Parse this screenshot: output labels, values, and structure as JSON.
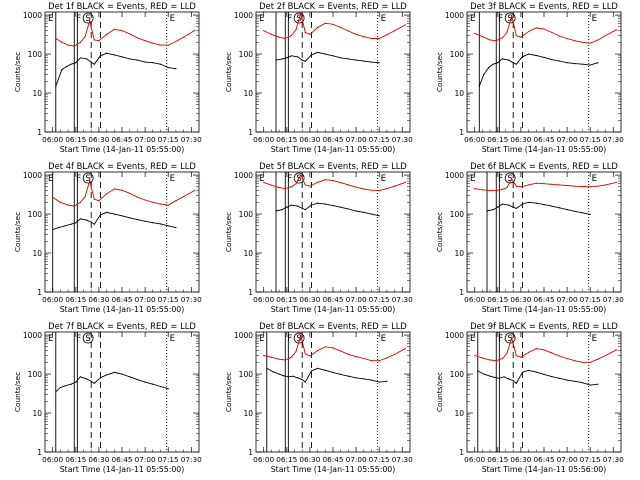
{
  "figure": {
    "time_axis": {
      "ticks": [
        "06:00",
        "06:15",
        "06:30",
        "06:45",
        "07:00",
        "07:15",
        "07:30"
      ],
      "xlim": [
        "05:55",
        "07:35"
      ]
    },
    "y_axis": {
      "ticks": [
        "1",
        "10",
        "100",
        "1000"
      ],
      "scale": "log",
      "ylim": [
        1,
        1200
      ]
    },
    "colors": {
      "events": "#000000",
      "lld": "#e00000",
      "axes": "#000000"
    },
    "markers": {
      "solid": [
        "06:14",
        "06:16"
      ],
      "dashed": [
        "06:25",
        "06:31"
      ],
      "dotted": [
        "07:14"
      ],
      "S_time": "06:23",
      "F_time": "06:14",
      "E_time": "07:14"
    }
  },
  "chart_data": [
    {
      "type": "line",
      "title": "Det 1f BLACK = Events, RED = LLD",
      "xlabel": "Start Time (14-Jan-11 05:55:00)",
      "ylabel": "Counts/sec",
      "marker_labels": [
        "E",
        "F",
        "S",
        "E"
      ],
      "start": "06:02",
      "series": [
        {
          "key": "events",
          "x": [
            "06:02",
            "06:06",
            "06:09",
            "06:12",
            "06:15",
            "06:18",
            "06:22",
            "06:25",
            "06:27",
            "06:31",
            "06:35",
            "06:40",
            "06:45",
            "06:50",
            "06:55",
            "07:00",
            "07:05",
            "07:10",
            "07:15",
            "07:20"
          ],
          "values": [
            15,
            40,
            48,
            55,
            60,
            80,
            75,
            62,
            55,
            90,
            105,
            95,
            85,
            75,
            70,
            62,
            60,
            55,
            45,
            42
          ]
        },
        {
          "key": "lld",
          "x": [
            "06:02",
            "06:06",
            "06:10",
            "06:14",
            "06:18",
            "06:21",
            "06:24",
            "06:27",
            "06:30",
            "06:35",
            "06:40",
            "06:45",
            "06:50",
            "06:55",
            "07:00",
            "07:05",
            "07:10",
            "07:15",
            "07:20",
            "07:25",
            "07:32"
          ],
          "values": [
            250,
            200,
            170,
            160,
            200,
            280,
            700,
            230,
            220,
            320,
            430,
            400,
            330,
            260,
            220,
            190,
            170,
            170,
            210,
            270,
            400
          ]
        }
      ]
    },
    {
      "type": "line",
      "title": "Det 2f BLACK = Events, RED = LLD",
      "xlabel": "Start Time (14-Jan-11 05:55:00)",
      "ylabel": "Counts/sec",
      "marker_labels": [
        "E",
        "F",
        "S",
        "E"
      ],
      "start": "06:08",
      "series": [
        {
          "key": "events",
          "x": [
            "06:08",
            "06:12",
            "06:15",
            "06:18",
            "06:22",
            "06:25",
            "06:27",
            "06:31",
            "06:35",
            "06:40",
            "06:45",
            "06:50",
            "06:55",
            "07:00",
            "07:05",
            "07:10",
            "07:15"
          ],
          "values": [
            70,
            75,
            80,
            90,
            85,
            70,
            65,
            95,
            110,
            100,
            90,
            80,
            75,
            70,
            66,
            62,
            60
          ]
        },
        {
          "key": "lld",
          "x": [
            "06:00",
            "06:05",
            "06:10",
            "06:14",
            "06:18",
            "06:21",
            "06:24",
            "06:27",
            "06:30",
            "06:35",
            "06:40",
            "06:45",
            "06:50",
            "06:55",
            "07:00",
            "07:05",
            "07:10",
            "07:15",
            "07:20",
            "07:25",
            "07:32"
          ],
          "values": [
            400,
            320,
            270,
            250,
            300,
            420,
            1100,
            360,
            320,
            480,
            620,
            580,
            480,
            390,
            320,
            280,
            250,
            250,
            310,
            400,
            560
          ]
        }
      ]
    },
    {
      "type": "line",
      "title": "Det 3f BLACK = Events, RED = LLD",
      "xlabel": "Start Time (14-Jan-11 05:55:00)",
      "ylabel": "Counts/sec",
      "marker_labels": [
        "E",
        "F",
        "S",
        "E"
      ],
      "start": "06:03",
      "series": [
        {
          "key": "events",
          "x": [
            "06:03",
            "06:06",
            "06:09",
            "06:12",
            "06:15",
            "06:18",
            "06:22",
            "06:25",
            "06:27",
            "06:31",
            "06:35",
            "06:40",
            "06:45",
            "06:50",
            "06:55",
            "07:00",
            "07:05",
            "07:10",
            "07:15",
            "07:20"
          ],
          "values": [
            15,
            30,
            45,
            55,
            60,
            75,
            70,
            60,
            55,
            85,
            100,
            92,
            82,
            72,
            66,
            60,
            57,
            55,
            52,
            60
          ]
        },
        {
          "key": "lld",
          "x": [
            "06:00",
            "06:05",
            "06:10",
            "06:14",
            "06:18",
            "06:21",
            "06:24",
            "06:27",
            "06:30",
            "06:35",
            "06:40",
            "06:45",
            "06:50",
            "06:55",
            "07:00",
            "07:05",
            "07:10",
            "07:15",
            "07:20",
            "07:25",
            "07:32"
          ],
          "values": [
            340,
            280,
            230,
            220,
            260,
            360,
            950,
            300,
            270,
            380,
            470,
            440,
            360,
            290,
            250,
            220,
            200,
            190,
            230,
            300,
            420
          ]
        }
      ]
    },
    {
      "type": "line",
      "title": "Det 4f BLACK = Events, RED = LLD",
      "xlabel": "Start Time (14-Jan-11 05:55:00)",
      "ylabel": "Counts/sec",
      "marker_labels": [
        "E",
        "F",
        "S",
        "E"
      ],
      "start": "06:00",
      "series": [
        {
          "key": "events",
          "x": [
            "06:00",
            "06:04",
            "06:08",
            "06:12",
            "06:15",
            "06:18",
            "06:22",
            "06:25",
            "06:27",
            "06:31",
            "06:35",
            "06:40",
            "06:45",
            "06:50",
            "06:55",
            "07:00",
            "07:05",
            "07:10",
            "07:15",
            "07:20"
          ],
          "values": [
            40,
            45,
            50,
            55,
            60,
            75,
            70,
            62,
            55,
            95,
            110,
            100,
            90,
            80,
            72,
            65,
            60,
            56,
            50,
            45
          ]
        },
        {
          "key": "lld",
          "x": [
            "06:00",
            "06:05",
            "06:10",
            "06:14",
            "06:18",
            "06:21",
            "06:24",
            "06:27",
            "06:30",
            "06:35",
            "06:40",
            "06:45",
            "06:50",
            "06:55",
            "07:00",
            "07:05",
            "07:10",
            "07:15",
            "07:20",
            "07:25",
            "07:32"
          ],
          "values": [
            270,
            200,
            170,
            160,
            200,
            280,
            700,
            240,
            220,
            330,
            440,
            410,
            340,
            270,
            230,
            200,
            180,
            170,
            220,
            280,
            400
          ]
        }
      ]
    },
    {
      "type": "line",
      "title": "Det 5f BLACK = Events, RED = LLD",
      "xlabel": "Start Time (14-Jan-11 05:55:00)",
      "ylabel": "Counts/sec",
      "marker_labels": [
        "E",
        "F",
        "S",
        "E"
      ],
      "start": "06:08",
      "series": [
        {
          "key": "events",
          "x": [
            "06:08",
            "06:12",
            "06:15",
            "06:18",
            "06:22",
            "06:25",
            "06:27",
            "06:31",
            "06:35",
            "06:40",
            "06:45",
            "06:50",
            "06:55",
            "07:00",
            "07:05",
            "07:10",
            "07:15"
          ],
          "values": [
            120,
            130,
            150,
            170,
            160,
            140,
            130,
            170,
            190,
            180,
            165,
            150,
            135,
            120,
            110,
            100,
            90
          ]
        },
        {
          "key": "lld",
          "x": [
            "06:00",
            "06:05",
            "06:10",
            "06:14",
            "06:18",
            "06:21",
            "06:24",
            "06:27",
            "06:30",
            "06:35",
            "06:40",
            "06:45",
            "06:50",
            "06:55",
            "07:00",
            "07:05",
            "07:10",
            "07:15",
            "07:20",
            "07:25",
            "07:32"
          ],
          "values": [
            650,
            550,
            480,
            450,
            500,
            600,
            1000,
            560,
            520,
            650,
            760,
            720,
            640,
            560,
            490,
            440,
            410,
            400,
            450,
            520,
            650
          ]
        }
      ]
    },
    {
      "type": "line",
      "title": "Det 6f BLACK = Events, RED = LLD",
      "xlabel": "Start Time (14-Jan-11 05:55:00)",
      "ylabel": "Counts/sec",
      "marker_labels": [
        "E",
        "F",
        "S",
        "E"
      ],
      "start": "06:08",
      "series": [
        {
          "key": "events",
          "x": [
            "06:08",
            "06:12",
            "06:15",
            "06:18",
            "06:22",
            "06:25",
            "06:27",
            "06:31",
            "06:35",
            "06:40",
            "06:45",
            "06:50",
            "06:55",
            "07:00",
            "07:05",
            "07:10",
            "07:15"
          ],
          "values": [
            120,
            130,
            150,
            180,
            170,
            150,
            140,
            180,
            200,
            190,
            175,
            160,
            145,
            130,
            118,
            108,
            98
          ]
        },
        {
          "key": "lld",
          "x": [
            "06:00",
            "06:05",
            "06:10",
            "06:14",
            "06:18",
            "06:21",
            "06:24",
            "06:27",
            "06:30",
            "06:35",
            "06:40",
            "06:45",
            "06:50",
            "06:55",
            "07:00",
            "07:05",
            "07:10",
            "07:15",
            "07:20",
            "07:25",
            "07:32"
          ],
          "values": [
            450,
            420,
            400,
            400,
            430,
            480,
            800,
            520,
            500,
            560,
            620,
            600,
            580,
            560,
            540,
            520,
            510,
            500,
            520,
            560,
            650
          ]
        }
      ]
    },
    {
      "type": "line",
      "title": "Det 7f BLACK = Events, RED = LLD",
      "xlabel": "Start Time (14-Jan-11 05:55:00)",
      "ylabel": "Counts/sec",
      "marker_labels": [
        "E",
        "F",
        "S",
        "E"
      ],
      "start": "06:02",
      "series": [
        {
          "key": "events",
          "x": [
            "06:02",
            "06:05",
            "06:08",
            "06:12",
            "06:15",
            "06:18",
            "06:22",
            "06:25",
            "06:27",
            "06:31",
            "06:35",
            "06:40",
            "06:45",
            "06:50",
            "06:55",
            "07:00",
            "07:05",
            "07:10",
            "07:15"
          ],
          "values": [
            35,
            45,
            50,
            55,
            62,
            85,
            75,
            65,
            58,
            80,
            95,
            110,
            100,
            85,
            72,
            62,
            55,
            48,
            42
          ]
        }
      ]
    },
    {
      "type": "line",
      "title": "Det 8f BLACK = Events, RED = LLD",
      "xlabel": "Start Time (14-Jan-11 05:55:00)",
      "ylabel": "Counts/sec",
      "marker_labels": [
        "E",
        "F",
        "S",
        "E"
      ],
      "start": "06:02",
      "series": [
        {
          "key": "events",
          "x": [
            "06:02",
            "06:06",
            "06:10",
            "06:13",
            "06:16",
            "06:19",
            "06:22",
            "06:25",
            "06:27",
            "06:31",
            "06:35",
            "06:40",
            "06:45",
            "06:50",
            "06:55",
            "07:00",
            "07:05",
            "07:10",
            "07:15",
            "07:20"
          ],
          "values": [
            140,
            115,
            100,
            90,
            85,
            88,
            80,
            72,
            62,
            120,
            140,
            125,
            110,
            98,
            88,
            80,
            75,
            70,
            62,
            65
          ]
        },
        {
          "key": "lld",
          "x": [
            "06:00",
            "06:05",
            "06:10",
            "06:14",
            "06:18",
            "06:21",
            "06:24",
            "06:27",
            "06:30",
            "06:35",
            "06:40",
            "06:45",
            "06:50",
            "06:55",
            "07:00",
            "07:05",
            "07:10",
            "07:15",
            "07:20",
            "07:25",
            "07:32"
          ],
          "values": [
            300,
            270,
            240,
            230,
            270,
            380,
            1000,
            330,
            290,
            400,
            500,
            470,
            390,
            320,
            280,
            250,
            220,
            220,
            260,
            320,
            450
          ]
        }
      ]
    },
    {
      "type": "line",
      "title": "Det 9f BLACK = Events, RED = LLD",
      "xlabel": "Start Time (14-Jan-11 05:56:00)",
      "ylabel": "Counts/sec",
      "marker_labels": [
        "E",
        "F",
        "S",
        "E"
      ],
      "start": "06:02",
      "series": [
        {
          "key": "events",
          "x": [
            "06:02",
            "06:06",
            "06:10",
            "06:13",
            "06:16",
            "06:19",
            "06:22",
            "06:25",
            "06:27",
            "06:31",
            "06:35",
            "06:40",
            "06:45",
            "06:50",
            "06:55",
            "07:00",
            "07:05",
            "07:10",
            "07:15",
            "07:20"
          ],
          "values": [
            120,
            100,
            88,
            82,
            78,
            85,
            75,
            68,
            58,
            110,
            125,
            112,
            98,
            86,
            78,
            70,
            65,
            60,
            52,
            55
          ]
        },
        {
          "key": "lld",
          "x": [
            "06:00",
            "06:05",
            "06:10",
            "06:14",
            "06:18",
            "06:21",
            "06:24",
            "06:27",
            "06:30",
            "06:35",
            "06:40",
            "06:45",
            "06:50",
            "06:55",
            "07:00",
            "07:05",
            "07:10",
            "07:15",
            "07:20",
            "07:25",
            "07:32"
          ],
          "values": [
            300,
            260,
            230,
            220,
            250,
            340,
            850,
            300,
            270,
            360,
            450,
            420,
            350,
            290,
            250,
            220,
            200,
            200,
            240,
            300,
            420
          ]
        }
      ]
    }
  ]
}
